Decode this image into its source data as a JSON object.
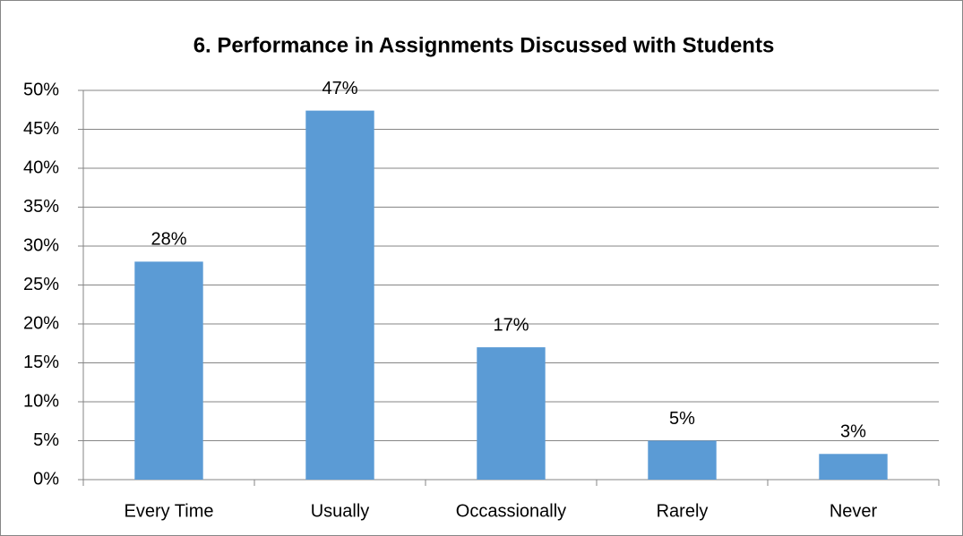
{
  "chart_data": {
    "type": "bar",
    "title": "6. Performance in Assignments Discussed with Students",
    "categories": [
      "Every Time",
      "Usually",
      "Occassionally",
      "Rarely",
      "Never"
    ],
    "values": [
      28,
      47.4,
      17,
      5,
      3.3
    ],
    "value_labels": [
      "28%",
      "47%",
      "17%",
      "5%",
      "3%"
    ],
    "color": "#5b9bd5",
    "ylim": [
      0,
      50
    ],
    "yticks": [
      {
        "value": 0,
        "label": "0%"
      },
      {
        "value": 5,
        "label": "5%"
      },
      {
        "value": 10,
        "label": "10%"
      },
      {
        "value": 15,
        "label": "15%"
      },
      {
        "value": 20,
        "label": "20%"
      },
      {
        "value": 25,
        "label": "25%"
      },
      {
        "value": 30,
        "label": "30%"
      },
      {
        "value": 35,
        "label": "35%"
      },
      {
        "value": 40,
        "label": "40%"
      },
      {
        "value": 45,
        "label": "45%"
      },
      {
        "value": 50,
        "label": "50%"
      }
    ],
    "grid": true
  }
}
